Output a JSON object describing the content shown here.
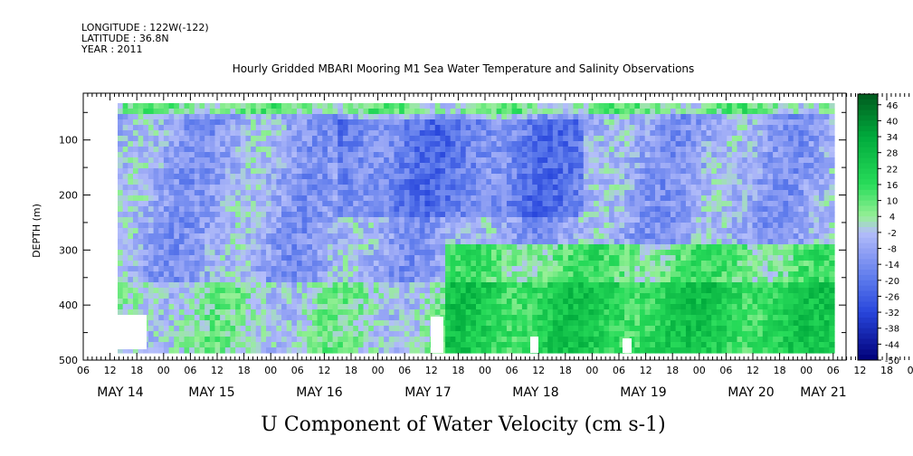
{
  "header": {
    "longitude": "LONGITUDE : 122W(-122)",
    "latitude": "LATITUDE : 36.8N",
    "year": "YEAR : 2011"
  },
  "chart_data": {
    "type": "heatmap",
    "title": "Hourly Gridded MBARI Mooring M1 Sea Water Temperature and Salinity Observations",
    "xlabel": "U Component of Water Velocity (cm s-1)",
    "ylabel": "DEPTH (m)",
    "y_ticks": [
      100,
      200,
      300,
      400,
      500
    ],
    "y_range": [
      500,
      15
    ],
    "x_hour_ticks": [
      "06",
      "12",
      "18",
      "00",
      "06",
      "12",
      "18",
      "00",
      "06",
      "12",
      "18",
      "00",
      "06",
      "12",
      "18",
      "00",
      "06",
      "12",
      "18",
      "00",
      "06",
      "12",
      "18",
      "00",
      "06",
      "12",
      "18",
      "00",
      "06",
      "12",
      "18",
      "00",
      "06"
    ],
    "x_day_labels": [
      "MAY 14",
      "MAY 15",
      "MAY 16",
      "MAY 17",
      "MAY 18",
      "MAY 19",
      "MAY 20",
      "MAY 21"
    ],
    "colorbar": {
      "labels": [
        "46",
        "40",
        "34",
        "28",
        "22",
        "16",
        "10",
        "4",
        "-2",
        "-8",
        "-14",
        "-20",
        "-26",
        "-32",
        "-38",
        "-44",
        "-50"
      ],
      "min": -50,
      "max": 50
    },
    "data_description": "u-velocity field: mostly weak negative (blue) values in upper layers with strongest negative near 100-200 m around May 17; positive (green) values dominate below ~300 m from May 17 onward"
  }
}
